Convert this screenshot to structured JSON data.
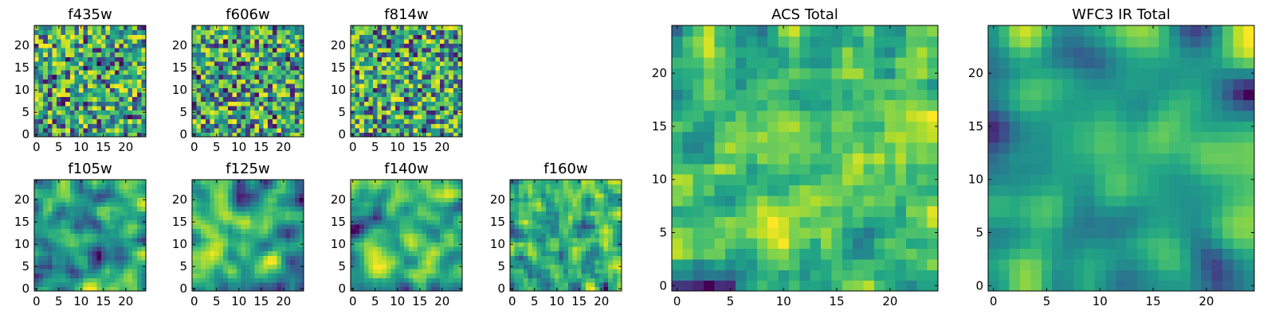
{
  "chart_data": [
    {
      "type": "heatmap",
      "title": "f435w",
      "xlim": [
        0,
        25
      ],
      "ylim": [
        0,
        25
      ],
      "xticks": [
        0,
        5,
        10,
        15,
        20
      ],
      "yticks": [
        0,
        5,
        10,
        15,
        20
      ],
      "grid_size": [
        25,
        25
      ],
      "colormap": "viridis",
      "smoothness": 0,
      "seed": 11
    },
    {
      "type": "heatmap",
      "title": "f606w",
      "xlim": [
        0,
        25
      ],
      "ylim": [
        0,
        25
      ],
      "xticks": [
        0,
        5,
        10,
        15,
        20
      ],
      "yticks": [
        0,
        5,
        10,
        15,
        20
      ],
      "grid_size": [
        25,
        25
      ],
      "colormap": "viridis",
      "smoothness": 0,
      "seed": 23
    },
    {
      "type": "heatmap",
      "title": "f814w",
      "xlim": [
        0,
        25
      ],
      "ylim": [
        0,
        25
      ],
      "xticks": [
        0,
        5,
        10,
        15,
        20
      ],
      "yticks": [
        0,
        5,
        10,
        15,
        20
      ],
      "grid_size": [
        25,
        25
      ],
      "colormap": "viridis",
      "smoothness": 0,
      "seed": 37
    },
    {
      "type": "heatmap",
      "title": "f105w",
      "xlim": [
        0,
        25
      ],
      "ylim": [
        0,
        25
      ],
      "xticks": [
        0,
        5,
        10,
        15,
        20
      ],
      "yticks": [
        0,
        5,
        10,
        15,
        20
      ],
      "grid_size": [
        25,
        25
      ],
      "colormap": "viridis",
      "smoothness": 2,
      "seed": 41
    },
    {
      "type": "heatmap",
      "title": "f125w",
      "xlim": [
        0,
        25
      ],
      "ylim": [
        0,
        25
      ],
      "xticks": [
        0,
        5,
        10,
        15,
        20
      ],
      "yticks": [
        0,
        5,
        10,
        15,
        20
      ],
      "grid_size": [
        25,
        25
      ],
      "colormap": "viridis",
      "smoothness": 2,
      "seed": 53
    },
    {
      "type": "heatmap",
      "title": "f140w",
      "xlim": [
        0,
        25
      ],
      "ylim": [
        0,
        25
      ],
      "xticks": [
        0,
        5,
        10,
        15,
        20
      ],
      "yticks": [
        0,
        5,
        10,
        15,
        20
      ],
      "grid_size": [
        25,
        25
      ],
      "colormap": "viridis",
      "smoothness": 2,
      "seed": 67
    },
    {
      "type": "heatmap",
      "title": "f160w",
      "xlim": [
        0,
        25
      ],
      "ylim": [
        0,
        25
      ],
      "xticks": [
        0,
        5,
        10,
        15,
        20
      ],
      "yticks": [
        0,
        5,
        10,
        15,
        20
      ],
      "grid_size": [
        25,
        25
      ],
      "colormap": "viridis",
      "smoothness": 1,
      "seed": 79
    },
    {
      "type": "heatmap",
      "title": "ACS Total",
      "xlim": [
        0,
        25
      ],
      "ylim": [
        0,
        25
      ],
      "xticks": [
        0,
        5,
        10,
        15,
        20
      ],
      "yticks": [
        0,
        5,
        10,
        15,
        20
      ],
      "grid_size": [
        25,
        25
      ],
      "colormap": "viridis",
      "smoothness": 1,
      "seed": 97
    },
    {
      "type": "heatmap",
      "title": "WFC3 IR Total",
      "xlim": [
        0,
        25
      ],
      "ylim": [
        0,
        25
      ],
      "xticks": [
        0,
        5,
        10,
        15,
        20
      ],
      "yticks": [
        0,
        5,
        10,
        15,
        20
      ],
      "grid_size": [
        25,
        25
      ],
      "colormap": "viridis",
      "smoothness": 3,
      "seed": 113
    }
  ]
}
